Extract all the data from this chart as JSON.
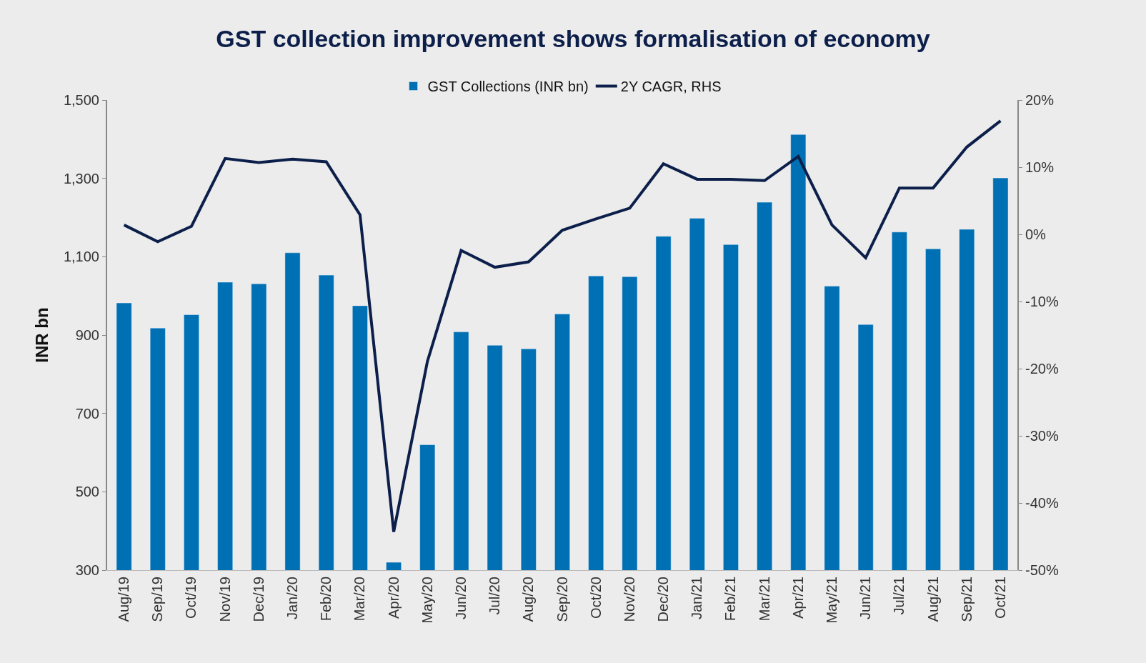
{
  "chart_data": {
    "type": "bar",
    "title": "GST collection improvement shows formalisation of economy",
    "ylabel": "INR bn",
    "categories": [
      "Aug/19",
      "Sep/19",
      "Oct/19",
      "Nov/19",
      "Dec/19",
      "Jan/20",
      "Feb/20",
      "Mar/20",
      "Apr/20",
      "May/20",
      "Jun/20",
      "Jul/20",
      "Aug/20",
      "Sep/20",
      "Oct/20",
      "Nov/20",
      "Dec/20",
      "Jan/21",
      "Feb/21",
      "Mar/21",
      "Apr/21",
      "May/21",
      "Jun/21",
      "Jul/21",
      "Aug/21",
      "Sep/21",
      "Oct/21"
    ],
    "series": [
      {
        "name": "GST Collections (INR bn)",
        "color": "#0070b4",
        "values": [
          982,
          918,
          952,
          1035,
          1031,
          1110,
          1053,
          975,
          320,
          620,
          908,
          874,
          865,
          954,
          1051,
          1049,
          1152,
          1198,
          1131,
          1239,
          1412,
          1025,
          927,
          1163,
          1120,
          1170,
          1301
        ]
      },
      {
        "name": "2Y CAGR, RHS",
        "type": "line",
        "axis": "y2",
        "color": "#0c1f4a",
        "line_style": "solid",
        "values": [
          1.4,
          -1.1,
          1.2,
          11.3,
          10.7,
          11.2,
          10.8,
          2.9,
          -44.3,
          -18.9,
          -2.4,
          -4.9,
          -4.1,
          0.6,
          2.3,
          3.9,
          10.5,
          8.2,
          8.2,
          8.0,
          11.6,
          1.4,
          -3.5,
          6.9,
          6.9,
          13.0,
          16.9
        ]
      }
    ],
    "ylim": [
      300,
      1500
    ],
    "yticks": [
      {
        "value": 300,
        "label": "300"
      },
      {
        "value": 500,
        "label": "500"
      },
      {
        "value": 700,
        "label": "700"
      },
      {
        "value": 900,
        "label": "900"
      },
      {
        "value": 1100,
        "label": "1,100"
      },
      {
        "value": 1300,
        "label": "1,300"
      },
      {
        "value": 1500,
        "label": "1,500"
      }
    ],
    "y2lim": [
      -50,
      20
    ],
    "y2ticks": [
      {
        "value": -50,
        "label": "-50%"
      },
      {
        "value": -40,
        "label": "-40%"
      },
      {
        "value": -30,
        "label": "-30%"
      },
      {
        "value": -20,
        "label": "-20%"
      },
      {
        "value": -10,
        "label": "-10%"
      },
      {
        "value": 0,
        "label": "0%"
      },
      {
        "value": 10,
        "label": "10%"
      },
      {
        "value": 20,
        "label": "20%"
      }
    ],
    "legend": "top",
    "grid": false,
    "marker": "none"
  }
}
